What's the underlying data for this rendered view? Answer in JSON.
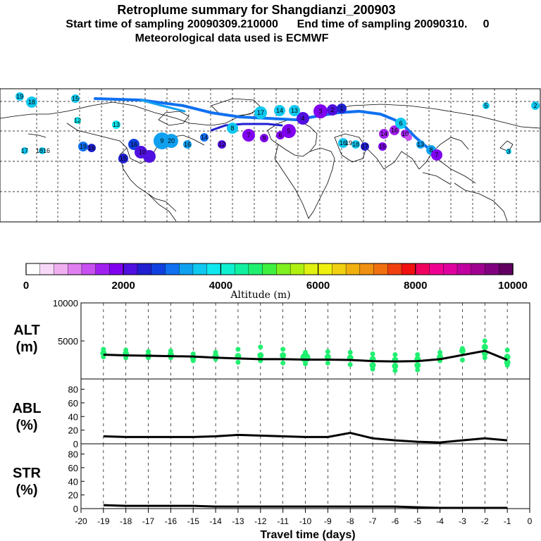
{
  "header": {
    "title": "Retroplume summary for Shangdianzi_200903",
    "subtitle": "Start time of sampling 20090309.210000      End time of sampling 20090310.     0",
    "met": "Meteorological data used is ECMWF"
  },
  "colorbar": {
    "ticks": [
      "0",
      "2000",
      "4000",
      "6000",
      "8000",
      "10000"
    ],
    "label": "Altitude (m)",
    "colors": [
      "#ffffff",
      "#f8d8f8",
      "#f0b0f0",
      "#e080f0",
      "#c850f0",
      "#a020f0",
      "#8000f0",
      "#5010e0",
      "#2020d0",
      "#1040e0",
      "#1070f0",
      "#10a0f0",
      "#10c8f0",
      "#10e8f0",
      "#10f0d0",
      "#10f0a0",
      "#20f070",
      "#40f040",
      "#80f020",
      "#b0f010",
      "#e0f010",
      "#f0f010",
      "#f0d010",
      "#f0b010",
      "#f09010",
      "#f07010",
      "#f04010",
      "#f01010",
      "#f00060",
      "#f00090",
      "#e000a0",
      "#c000a0",
      "#a00090",
      "#800080",
      "#600060"
    ]
  },
  "map": {
    "labels": [
      {
        "t": "19"
      },
      {
        "t": "18"
      },
      {
        "t": "15"
      },
      {
        "t": "12"
      },
      {
        "t": "13"
      },
      {
        "t": "17"
      },
      {
        "t": "1816"
      },
      {
        "t": "19"
      },
      {
        "t": "16"
      },
      {
        "t": "15"
      },
      {
        "t": "16"
      },
      {
        "t": "10"
      },
      {
        "t": "9"
      },
      {
        "t": "20"
      },
      {
        "t": "16"
      },
      {
        "t": "14"
      },
      {
        "t": "12"
      },
      {
        "t": "8"
      },
      {
        "t": "7"
      },
      {
        "t": "9"
      },
      {
        "t": "6"
      },
      {
        "t": "5"
      },
      {
        "t": "4"
      },
      {
        "t": "3"
      },
      {
        "t": "2"
      },
      {
        "t": "1"
      },
      {
        "t": "17"
      },
      {
        "t": "14"
      },
      {
        "t": "13"
      },
      {
        "t": "16"
      },
      {
        "t": "19"
      },
      {
        "t": "18"
      },
      {
        "t": "17"
      },
      {
        "t": "15"
      },
      {
        "t": "14"
      },
      {
        "t": "16"
      },
      {
        "t": "10"
      },
      {
        "t": "13"
      },
      {
        "t": "8"
      },
      {
        "t": "7"
      },
      {
        "t": "6"
      },
      {
        "t": "5"
      },
      {
        "t": "3"
      },
      {
        "t": "2"
      }
    ]
  },
  "chart_data": [
    {
      "type": "line",
      "panel": "ALT",
      "ylabel": "ALT\n(m)",
      "ylabel_lines": [
        "ALT",
        "(m)"
      ],
      "ylim": [
        0,
        10000
      ],
      "yticks": [
        0,
        5000,
        10000
      ],
      "ytick_labels": [
        "",
        "5000",
        "10000"
      ],
      "x": [
        -19,
        -18,
        -17,
        -16,
        -15,
        -14,
        -13,
        -12,
        -11,
        -10,
        -9,
        -8,
        -7,
        -6,
        -5,
        -4,
        -3,
        -2,
        -1
      ],
      "series": [
        {
          "name": "mean altitude",
          "values": [
            3200,
            3100,
            3050,
            3000,
            2950,
            2800,
            2700,
            2600,
            2600,
            2550,
            2550,
            2500,
            2350,
            2300,
            2350,
            2600,
            3150,
            3700,
            2500
          ]
        }
      ],
      "scatter": [
        {
          "x": -19,
          "ys": [
            3900,
            3400,
            2900
          ]
        },
        {
          "x": -18,
          "ys": [
            3800,
            3300,
            2800
          ]
        },
        {
          "x": -17,
          "ys": [
            3600,
            3100,
            2800
          ]
        },
        {
          "x": -16,
          "ys": [
            3700,
            3200,
            2800
          ]
        },
        {
          "x": -15,
          "ys": [
            3300,
            2800,
            2400
          ]
        },
        {
          "x": -14,
          "ys": [
            3500,
            3000,
            2600
          ]
        },
        {
          "x": -13,
          "ys": [
            3900,
            3000,
            2200
          ]
        },
        {
          "x": -12,
          "ys": [
            4200,
            3100,
            2400
          ]
        },
        {
          "x": -11,
          "ys": [
            3900,
            3100,
            2100
          ]
        },
        {
          "x": -10,
          "ys": [
            3500,
            2800,
            2000
          ]
        },
        {
          "x": -9,
          "ys": [
            3600,
            2900,
            2100
          ]
        },
        {
          "x": -8,
          "ys": [
            3500,
            2800,
            1900
          ]
        },
        {
          "x": -7,
          "ys": [
            3300,
            2600,
            1800,
            1300
          ]
        },
        {
          "x": -6,
          "ys": [
            3200,
            2500,
            1700,
            1100
          ]
        },
        {
          "x": -5,
          "ys": [
            3200,
            2600,
            1800,
            1200
          ]
        },
        {
          "x": -4,
          "ys": [
            3500,
            2900,
            2400
          ]
        },
        {
          "x": -3,
          "ys": [
            4000,
            3700,
            2500
          ]
        },
        {
          "x": -2,
          "ys": [
            5000,
            4200,
            3400,
            2800
          ]
        },
        {
          "x": -1,
          "ys": [
            3800,
            2900,
            2200,
            1800
          ]
        }
      ]
    },
    {
      "type": "line",
      "panel": "ABL",
      "ylabel": "ABL\n(%)",
      "ylabel_lines": [
        "ABL",
        "(%)"
      ],
      "ylim": [
        0,
        95
      ],
      "yticks": [
        0,
        20,
        40,
        60,
        80
      ],
      "ytick_labels": [
        "0",
        "20",
        "40",
        "60",
        "80"
      ],
      "x": [
        -19,
        -18,
        -17,
        -16,
        -15,
        -14,
        -13,
        -12,
        -11,
        -10,
        -9,
        -8,
        -7,
        -6,
        -5,
        -4,
        -3,
        -2,
        -1
      ],
      "series": [
        {
          "name": "ABL fraction",
          "values": [
            11,
            10,
            10,
            10,
            10,
            11,
            13,
            12,
            11,
            10,
            10,
            16,
            8,
            5,
            3,
            2,
            5,
            8,
            5
          ]
        }
      ]
    },
    {
      "type": "line",
      "panel": "STR",
      "ylabel": "STR\n(%)",
      "ylabel_lines": [
        "STR",
        "(%)"
      ],
      "ylim": [
        0,
        95
      ],
      "yticks": [
        0,
        20,
        40,
        60,
        80
      ],
      "ytick_labels": [
        "0",
        "20",
        "40",
        "60",
        "80"
      ],
      "x": [
        -19,
        -18,
        -17,
        -16,
        -15,
        -14,
        -13,
        -12,
        -11,
        -10,
        -9,
        -8,
        -7,
        -6,
        -5,
        -4,
        -3,
        -2,
        -1
      ],
      "series": [
        {
          "name": "stratospheric fraction",
          "values": [
            5,
            4,
            4,
            4,
            4,
            3,
            3,
            3,
            3,
            3,
            3,
            3,
            3,
            3,
            2,
            1,
            1,
            1,
            1
          ]
        }
      ]
    }
  ],
  "xaxis": {
    "ticks": [
      -20,
      -19,
      -18,
      -17,
      -16,
      -15,
      -14,
      -13,
      -12,
      -11,
      -10,
      -9,
      -8,
      -7,
      -6,
      -5,
      -4,
      -3,
      -2,
      -1,
      0
    ],
    "tick_labels": [
      "-20",
      "-19",
      "-18",
      "-17",
      "-16",
      "-15",
      "-14",
      "-13",
      "-12",
      "-11",
      "-10",
      "-9",
      "-8",
      "-7",
      "-6",
      "-5",
      "-4",
      "-3",
      "-2",
      "-1",
      "0"
    ],
    "label": "Travel time (days)"
  }
}
